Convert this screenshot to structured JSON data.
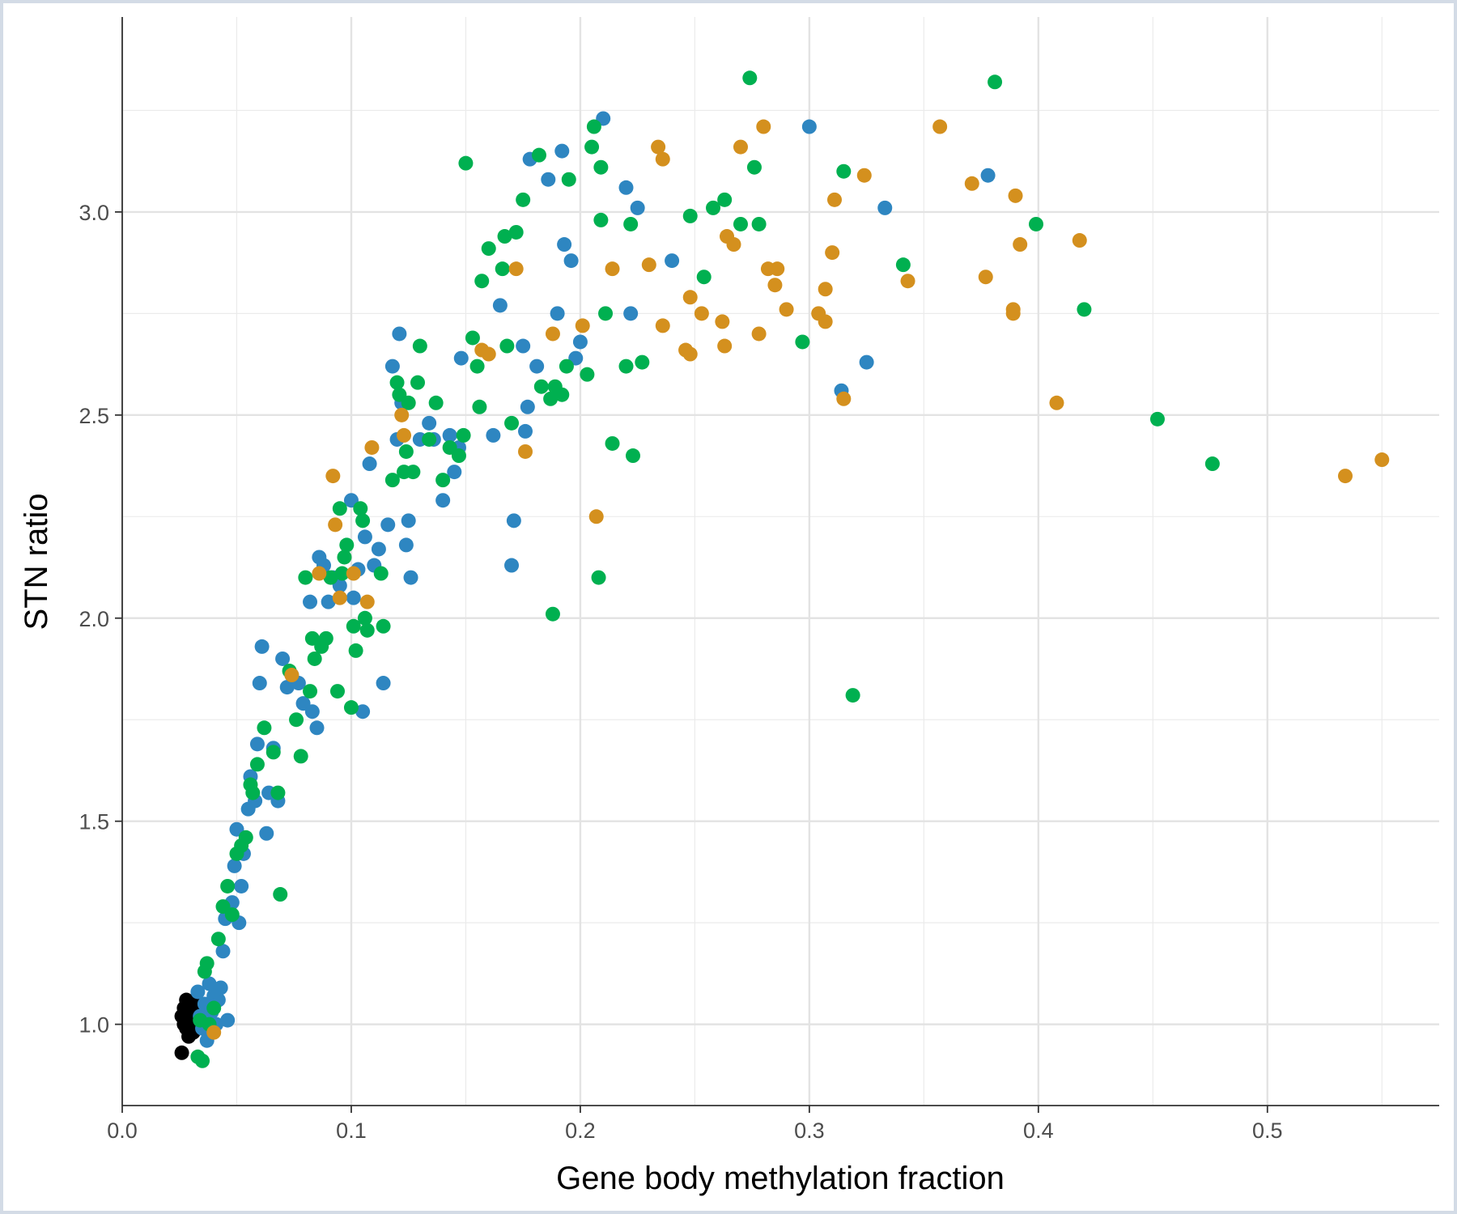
{
  "chart_data": {
    "type": "scatter",
    "title": "",
    "xlabel": "Gene body methylation fraction",
    "ylabel": "STN ratio",
    "xlim": [
      0.0,
      0.575
    ],
    "ylim": [
      0.8,
      3.48
    ],
    "x_ticks": [
      0.0,
      0.1,
      0.2,
      0.3,
      0.4,
      0.5
    ],
    "x_tick_labels": [
      "0.0",
      "0.1",
      "0.2",
      "0.3",
      "0.4",
      "0.5"
    ],
    "y_ticks": [
      1.0,
      1.5,
      2.0,
      2.5,
      3.0
    ],
    "y_tick_labels": [
      "1.0",
      "1.5",
      "2.0",
      "2.5",
      "3.0"
    ],
    "grid": true,
    "legend": "none",
    "colors": {
      "black": "#000000",
      "blue": "#2e86c1",
      "green": "#00b050",
      "orange": "#d4901e"
    },
    "series": [
      {
        "color": "#000000",
        "points": [
          [
            0.026,
            0.93
          ],
          [
            0.026,
            1.02
          ],
          [
            0.027,
            1.0
          ],
          [
            0.027,
            1.04
          ],
          [
            0.028,
            1.06
          ],
          [
            0.028,
            0.99
          ],
          [
            0.029,
            1.01
          ],
          [
            0.029,
            0.97
          ],
          [
            0.03,
            1.03
          ],
          [
            0.031,
            1.0
          ],
          [
            0.031,
            0.98
          ],
          [
            0.032,
            1.05
          ]
        ]
      },
      {
        "color": "#2e86c1",
        "points": [
          [
            0.033,
            1.08
          ],
          [
            0.034,
            1.02
          ],
          [
            0.035,
            0.99
          ],
          [
            0.036,
            1.05
          ],
          [
            0.037,
            0.96
          ],
          [
            0.038,
            1.1
          ],
          [
            0.039,
            1.03
          ],
          [
            0.04,
            1.07
          ],
          [
            0.041,
            1.0
          ],
          [
            0.042,
            1.06
          ],
          [
            0.043,
            1.09
          ],
          [
            0.044,
            1.18
          ],
          [
            0.045,
            1.26
          ],
          [
            0.046,
            1.01
          ],
          [
            0.048,
            1.3
          ],
          [
            0.049,
            1.39
          ],
          [
            0.05,
            1.48
          ],
          [
            0.051,
            1.25
          ],
          [
            0.052,
            1.34
          ],
          [
            0.053,
            1.42
          ],
          [
            0.055,
            1.53
          ],
          [
            0.056,
            1.61
          ],
          [
            0.058,
            1.55
          ],
          [
            0.059,
            1.69
          ],
          [
            0.06,
            1.84
          ],
          [
            0.061,
            1.93
          ],
          [
            0.063,
            1.47
          ],
          [
            0.064,
            1.57
          ],
          [
            0.066,
            1.68
          ],
          [
            0.068,
            1.55
          ],
          [
            0.07,
            1.9
          ],
          [
            0.072,
            1.83
          ],
          [
            0.074,
            1.86
          ],
          [
            0.077,
            1.84
          ],
          [
            0.079,
            1.79
          ],
          [
            0.082,
            2.04
          ],
          [
            0.083,
            1.77
          ],
          [
            0.085,
            1.73
          ],
          [
            0.086,
            2.15
          ],
          [
            0.088,
            2.13
          ],
          [
            0.09,
            2.04
          ],
          [
            0.092,
            2.1
          ],
          [
            0.095,
            2.08
          ],
          [
            0.1,
            2.29
          ],
          [
            0.101,
            2.05
          ],
          [
            0.103,
            2.12
          ],
          [
            0.105,
            1.77
          ],
          [
            0.106,
            2.2
          ],
          [
            0.108,
            2.38
          ],
          [
            0.11,
            2.13
          ],
          [
            0.112,
            2.17
          ],
          [
            0.114,
            1.84
          ],
          [
            0.116,
            2.23
          ],
          [
            0.118,
            2.62
          ],
          [
            0.12,
            2.44
          ],
          [
            0.121,
            2.7
          ],
          [
            0.122,
            2.53
          ],
          [
            0.124,
            2.18
          ],
          [
            0.125,
            2.24
          ],
          [
            0.126,
            2.1
          ],
          [
            0.13,
            2.44
          ],
          [
            0.134,
            2.48
          ],
          [
            0.136,
            2.44
          ],
          [
            0.14,
            2.29
          ],
          [
            0.143,
            2.45
          ],
          [
            0.145,
            2.36
          ],
          [
            0.147,
            2.42
          ],
          [
            0.148,
            2.64
          ],
          [
            0.162,
            2.45
          ],
          [
            0.165,
            2.77
          ],
          [
            0.17,
            2.13
          ],
          [
            0.171,
            2.24
          ],
          [
            0.175,
            2.67
          ],
          [
            0.176,
            2.46
          ],
          [
            0.177,
            2.52
          ],
          [
            0.178,
            3.13
          ],
          [
            0.181,
            2.62
          ],
          [
            0.186,
            3.08
          ],
          [
            0.19,
            2.75
          ],
          [
            0.192,
            3.15
          ],
          [
            0.193,
            2.92
          ],
          [
            0.196,
            2.88
          ],
          [
            0.198,
            2.64
          ],
          [
            0.2,
            2.68
          ],
          [
            0.21,
            3.23
          ],
          [
            0.22,
            3.06
          ],
          [
            0.222,
            2.75
          ],
          [
            0.225,
            3.01
          ],
          [
            0.24,
            2.88
          ],
          [
            0.3,
            3.21
          ],
          [
            0.314,
            2.56
          ],
          [
            0.325,
            2.63
          ],
          [
            0.333,
            3.01
          ],
          [
            0.378,
            3.09
          ]
        ]
      },
      {
        "color": "#00b050",
        "points": [
          [
            0.033,
            0.92
          ],
          [
            0.034,
            1.01
          ],
          [
            0.035,
            0.91
          ],
          [
            0.036,
            1.13
          ],
          [
            0.037,
            1.15
          ],
          [
            0.038,
            1.0
          ],
          [
            0.04,
            1.04
          ],
          [
            0.042,
            1.21
          ],
          [
            0.044,
            1.29
          ],
          [
            0.046,
            1.34
          ],
          [
            0.048,
            1.27
          ],
          [
            0.05,
            1.42
          ],
          [
            0.052,
            1.44
          ],
          [
            0.054,
            1.46
          ],
          [
            0.056,
            1.59
          ],
          [
            0.057,
            1.57
          ],
          [
            0.059,
            1.64
          ],
          [
            0.062,
            1.73
          ],
          [
            0.066,
            1.67
          ],
          [
            0.068,
            1.57
          ],
          [
            0.069,
            1.32
          ],
          [
            0.073,
            1.87
          ],
          [
            0.076,
            1.75
          ],
          [
            0.078,
            1.66
          ],
          [
            0.08,
            2.1
          ],
          [
            0.082,
            1.82
          ],
          [
            0.083,
            1.95
          ],
          [
            0.084,
            1.9
          ],
          [
            0.087,
            1.93
          ],
          [
            0.089,
            1.95
          ],
          [
            0.091,
            2.1
          ],
          [
            0.094,
            1.82
          ],
          [
            0.095,
            2.27
          ],
          [
            0.096,
            2.11
          ],
          [
            0.097,
            2.15
          ],
          [
            0.098,
            2.18
          ],
          [
            0.1,
            1.78
          ],
          [
            0.101,
            1.98
          ],
          [
            0.102,
            1.92
          ],
          [
            0.104,
            2.27
          ],
          [
            0.105,
            2.24
          ],
          [
            0.106,
            2.0
          ],
          [
            0.107,
            1.97
          ],
          [
            0.113,
            2.11
          ],
          [
            0.114,
            1.98
          ],
          [
            0.118,
            2.34
          ],
          [
            0.12,
            2.58
          ],
          [
            0.121,
            2.55
          ],
          [
            0.123,
            2.36
          ],
          [
            0.124,
            2.41
          ],
          [
            0.125,
            2.53
          ],
          [
            0.127,
            2.36
          ],
          [
            0.129,
            2.58
          ],
          [
            0.13,
            2.67
          ],
          [
            0.134,
            2.44
          ],
          [
            0.137,
            2.53
          ],
          [
            0.14,
            2.34
          ],
          [
            0.143,
            2.42
          ],
          [
            0.147,
            2.4
          ],
          [
            0.149,
            2.45
          ],
          [
            0.15,
            3.12
          ],
          [
            0.153,
            2.69
          ],
          [
            0.155,
            2.62
          ],
          [
            0.156,
            2.52
          ],
          [
            0.157,
            2.83
          ],
          [
            0.16,
            2.91
          ],
          [
            0.166,
            2.86
          ],
          [
            0.167,
            2.94
          ],
          [
            0.168,
            2.67
          ],
          [
            0.17,
            2.48
          ],
          [
            0.172,
            2.95
          ],
          [
            0.175,
            3.03
          ],
          [
            0.182,
            3.14
          ],
          [
            0.183,
            2.57
          ],
          [
            0.187,
            2.54
          ],
          [
            0.188,
            2.01
          ],
          [
            0.189,
            2.57
          ],
          [
            0.192,
            2.55
          ],
          [
            0.194,
            2.62
          ],
          [
            0.195,
            3.08
          ],
          [
            0.203,
            2.6
          ],
          [
            0.205,
            3.16
          ],
          [
            0.206,
            3.21
          ],
          [
            0.208,
            2.1
          ],
          [
            0.209,
            3.11
          ],
          [
            0.209,
            2.98
          ],
          [
            0.211,
            2.75
          ],
          [
            0.214,
            2.43
          ],
          [
            0.22,
            2.62
          ],
          [
            0.222,
            2.97
          ],
          [
            0.223,
            2.4
          ],
          [
            0.227,
            2.63
          ],
          [
            0.248,
            2.99
          ],
          [
            0.254,
            2.84
          ],
          [
            0.258,
            3.01
          ],
          [
            0.263,
            3.03
          ],
          [
            0.27,
            2.97
          ],
          [
            0.274,
            3.33
          ],
          [
            0.276,
            3.11
          ],
          [
            0.278,
            2.97
          ],
          [
            0.297,
            2.68
          ],
          [
            0.315,
            3.1
          ],
          [
            0.319,
            1.81
          ],
          [
            0.341,
            2.87
          ],
          [
            0.381,
            3.32
          ],
          [
            0.399,
            2.97
          ],
          [
            0.42,
            2.76
          ],
          [
            0.452,
            2.49
          ],
          [
            0.476,
            2.38
          ]
        ]
      },
      {
        "color": "#d4901e",
        "points": [
          [
            0.04,
            0.98
          ],
          [
            0.074,
            1.86
          ],
          [
            0.086,
            2.11
          ],
          [
            0.092,
            2.35
          ],
          [
            0.093,
            2.23
          ],
          [
            0.095,
            2.05
          ],
          [
            0.101,
            2.11
          ],
          [
            0.107,
            2.04
          ],
          [
            0.109,
            2.42
          ],
          [
            0.122,
            2.5
          ],
          [
            0.123,
            2.45
          ],
          [
            0.157,
            2.66
          ],
          [
            0.16,
            2.65
          ],
          [
            0.172,
            2.86
          ],
          [
            0.176,
            2.41
          ],
          [
            0.188,
            2.7
          ],
          [
            0.201,
            2.72
          ],
          [
            0.207,
            2.25
          ],
          [
            0.214,
            2.86
          ],
          [
            0.23,
            2.87
          ],
          [
            0.234,
            3.16
          ],
          [
            0.236,
            3.13
          ],
          [
            0.236,
            2.72
          ],
          [
            0.246,
            2.66
          ],
          [
            0.248,
            2.79
          ],
          [
            0.248,
            2.65
          ],
          [
            0.253,
            2.75
          ],
          [
            0.262,
            2.73
          ],
          [
            0.263,
            2.67
          ],
          [
            0.264,
            2.94
          ],
          [
            0.267,
            2.92
          ],
          [
            0.27,
            3.16
          ],
          [
            0.278,
            2.7
          ],
          [
            0.28,
            3.21
          ],
          [
            0.282,
            2.86
          ],
          [
            0.285,
            2.82
          ],
          [
            0.286,
            2.86
          ],
          [
            0.29,
            2.76
          ],
          [
            0.304,
            2.75
          ],
          [
            0.307,
            2.73
          ],
          [
            0.307,
            2.81
          ],
          [
            0.31,
            2.9
          ],
          [
            0.311,
            3.03
          ],
          [
            0.315,
            2.54
          ],
          [
            0.324,
            3.09
          ],
          [
            0.343,
            2.83
          ],
          [
            0.357,
            3.21
          ],
          [
            0.371,
            3.07
          ],
          [
            0.377,
            2.84
          ],
          [
            0.389,
            2.76
          ],
          [
            0.389,
            2.75
          ],
          [
            0.39,
            3.04
          ],
          [
            0.392,
            2.92
          ],
          [
            0.408,
            2.53
          ],
          [
            0.418,
            2.93
          ],
          [
            0.534,
            2.35
          ],
          [
            0.55,
            2.39
          ]
        ]
      }
    ]
  }
}
